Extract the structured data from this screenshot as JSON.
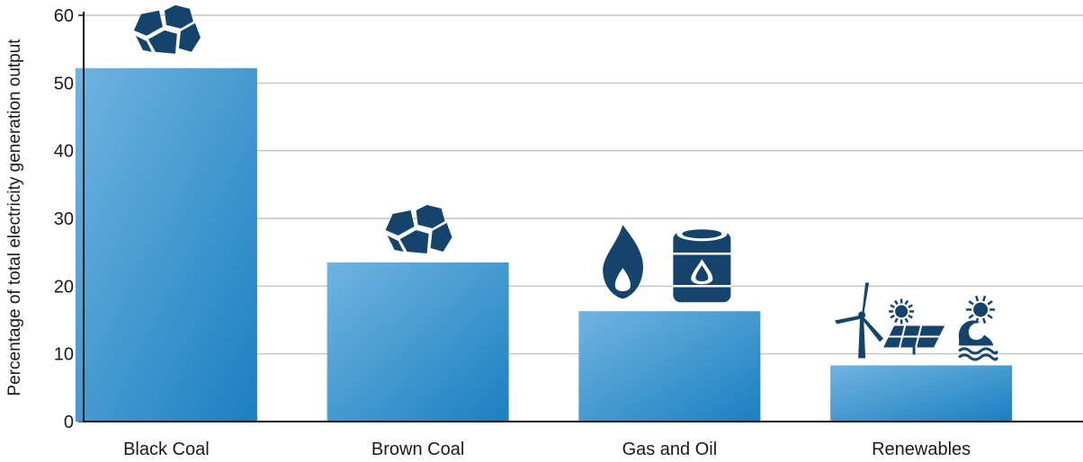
{
  "chart_data": {
    "type": "bar",
    "title": "",
    "xlabel": "",
    "ylabel": "Percentage of total electricity generation output",
    "categories": [
      "Black Coal",
      "Brown Coal",
      "Gas and Oil",
      "Renewables"
    ],
    "values": [
      52.2,
      23.5,
      16.3,
      8.3
    ],
    "ylim": [
      0,
      60
    ],
    "yticks": [
      "0",
      "10",
      "20",
      "30",
      "40",
      "50",
      "60"
    ],
    "grid": true,
    "legend": "none",
    "icons": [
      [
        "coal-icon"
      ],
      [
        "coal-icon"
      ],
      [
        "gas-flame-icon",
        "oil-barrel-icon"
      ],
      [
        "wind-turbine-icon",
        "solar-panel-icon",
        "wave-sun-icon"
      ]
    ]
  },
  "colors": {
    "bar_light": "#6fb4e0",
    "bar_dark": "#1c7fc1",
    "icon": "#14446b",
    "grid": "#b9b9b9",
    "axis": "#111111"
  }
}
